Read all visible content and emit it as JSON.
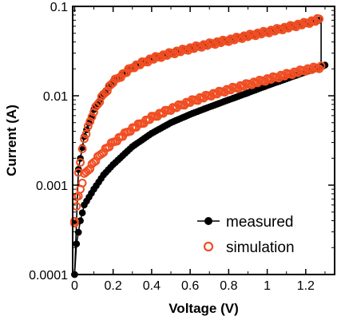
{
  "chart_data": {
    "type": "scatter",
    "title": "",
    "xlabel": "Voltage (V)",
    "ylabel": "Current (A)",
    "x_scale": "linear",
    "y_scale": "log",
    "xlim": [
      -0.01,
      1.35
    ],
    "ylim": [
      0.0001,
      0.1
    ],
    "x_ticks": [
      0,
      0.2,
      0.4,
      0.6,
      0.8,
      1,
      1.2
    ],
    "x_tick_labels": [
      "0",
      "0.2",
      "0.4",
      "0.6",
      "0.8",
      "1",
      "1.2"
    ],
    "y_ticks": [
      0.0001,
      0.001,
      0.01,
      0.1
    ],
    "y_tick_labels": [
      "0.0001",
      "0.001",
      "0.01",
      "0.1"
    ],
    "grid": false,
    "legend_position": "bottom-right",
    "series": [
      {
        "name": "measured",
        "marker": "filled-circle-with-line",
        "color": "#000000",
        "upper_branch": {
          "x": [
            0.0,
            0.02,
            0.05,
            0.1,
            0.15,
            0.2,
            0.3,
            0.4,
            0.5,
            0.6,
            0.7,
            0.8,
            0.9,
            1.0,
            1.1,
            1.2,
            1.27
          ],
          "y": [
            0.0001,
            0.0015,
            0.0035,
            0.007,
            0.0105,
            0.0145,
            0.021,
            0.026,
            0.03,
            0.034,
            0.038,
            0.042,
            0.047,
            0.052,
            0.058,
            0.065,
            0.07
          ]
        },
        "lower_branch": {
          "x": [
            0.0,
            0.01,
            0.03,
            0.05,
            0.1,
            0.15,
            0.2,
            0.3,
            0.4,
            0.5,
            0.6,
            0.7,
            0.8,
            0.9,
            1.0,
            1.1,
            1.2,
            1.28,
            1.3
          ],
          "y": [
            0.0001,
            0.00022,
            0.0004,
            0.0006,
            0.0009,
            0.0013,
            0.0017,
            0.0027,
            0.0038,
            0.005,
            0.0062,
            0.0075,
            0.009,
            0.0108,
            0.013,
            0.0155,
            0.0185,
            0.021,
            0.022
          ]
        },
        "vertical_segment": {
          "x": 1.28,
          "y": [
            0.021,
            0.075
          ]
        }
      },
      {
        "name": "simulation",
        "marker": "open-circle",
        "color": "#f04e23",
        "upper_branch": {
          "x": [
            0.0,
            0.02,
            0.05,
            0.1,
            0.15,
            0.2,
            0.3,
            0.4,
            0.5,
            0.6,
            0.7,
            0.8,
            0.9,
            1.0,
            1.1,
            1.2,
            1.27
          ],
          "y": [
            0.00038,
            0.0014,
            0.0033,
            0.0068,
            0.0103,
            0.0143,
            0.0208,
            0.0258,
            0.0298,
            0.0338,
            0.0378,
            0.0418,
            0.0468,
            0.0518,
            0.0578,
            0.0648,
            0.0715
          ]
        },
        "lower_branch": {
          "x": [
            0.0,
            0.01,
            0.03,
            0.05,
            0.1,
            0.15,
            0.2,
            0.3,
            0.4,
            0.5,
            0.6,
            0.7,
            0.8,
            0.9,
            1.0,
            1.1,
            1.2,
            1.28
          ],
          "y": [
            0.00038,
            0.0006,
            0.0009,
            0.0013,
            0.0018,
            0.0024,
            0.003,
            0.0043,
            0.0057,
            0.0071,
            0.0086,
            0.0101,
            0.0117,
            0.0134,
            0.0152,
            0.0172,
            0.0195,
            0.021
          ]
        }
      }
    ]
  }
}
